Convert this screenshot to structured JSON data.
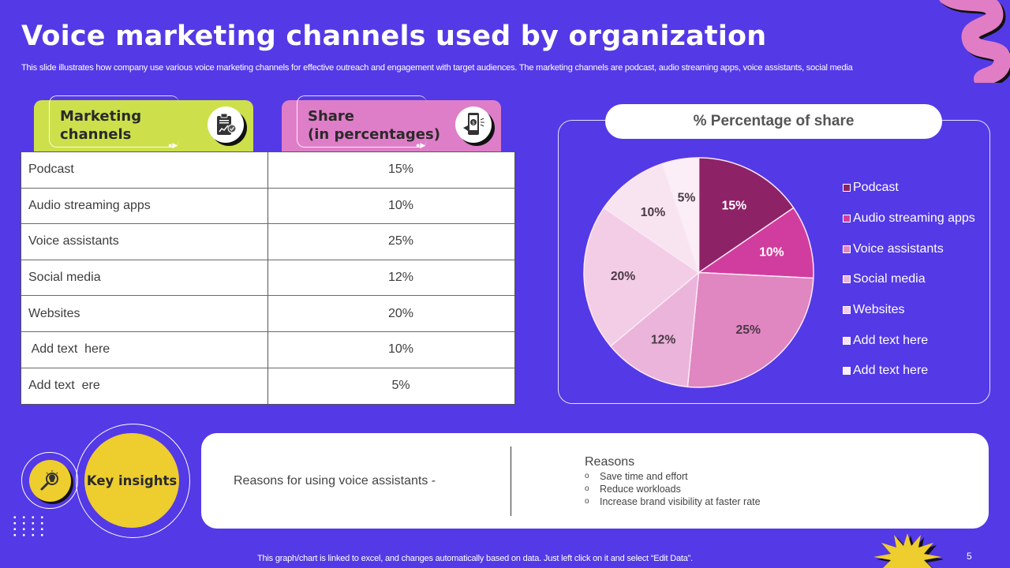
{
  "header": {
    "title": "Voice marketing channels used by organization",
    "subtitle": "This slide illustrates how company use various voice marketing channels for effective outreach and engagement with target audiences. The marketing channels are podcast, audio streaming apps, voice assistants, social media"
  },
  "table": {
    "headers": [
      {
        "label_line1": "Marketing",
        "label_line2": "channels",
        "icon": "clipboard-chart-icon",
        "color": "#CDE04B"
      },
      {
        "label_line1": "Share",
        "label_line2": "(in percentages)",
        "icon": "mobile-payment-icon",
        "color": "#DF7EC8"
      }
    ],
    "rows": [
      {
        "channel": "Podcast",
        "share": "15%"
      },
      {
        "channel": "Audio streaming apps",
        "share": "10%"
      },
      {
        "channel": "Voice assistants",
        "share": "25%"
      },
      {
        "channel": "Social media",
        "share": "12%"
      },
      {
        "channel": "Websites",
        "share": "20%"
      },
      {
        "channel": " Add text  here",
        "share": "10%"
      },
      {
        "channel": "Add text  ere",
        "share": "5%"
      }
    ]
  },
  "chart_data": {
    "type": "pie",
    "title": "% Percentage of share",
    "categories": [
      "Podcast",
      "Audio streaming apps",
      "Voice assistants",
      "Social media",
      "Websites",
      "Add text here",
      "Add text here"
    ],
    "values": [
      15,
      10,
      25,
      12,
      20,
      10,
      5
    ],
    "labels": [
      "15%",
      "10%",
      "25%",
      "12%",
      "20%",
      "10%",
      "5%"
    ],
    "colors": [
      "#8E2267",
      "#D13D9E",
      "#E086C1",
      "#EBB4DA",
      "#F3CDE6",
      "#F8E3F1",
      "#FBEEF7"
    ],
    "label_colors": [
      "#ffffff",
      "#ffffff",
      "#4a3a45",
      "#4a3a45",
      "#4a3a45",
      "#4a3a45",
      "#4a3a45"
    ],
    "legend_position": "right",
    "start_angle": "12 o'clock, clockwise"
  },
  "insights": {
    "badge": "Key insights",
    "icon": "lightbulb-magnifier-icon",
    "left_text": "Reasons for using voice assistants -",
    "reasons_title": "Reasons",
    "bullet": "o",
    "reasons": [
      "Save time and effort",
      "Reduce workloads",
      "Increase brand visibility at faster rate"
    ]
  },
  "footer": {
    "note": "This graph/chart is linked to excel,  and changes automatically based on data. Just left click on it and select “Edit Data”.",
    "page_number": "5"
  }
}
